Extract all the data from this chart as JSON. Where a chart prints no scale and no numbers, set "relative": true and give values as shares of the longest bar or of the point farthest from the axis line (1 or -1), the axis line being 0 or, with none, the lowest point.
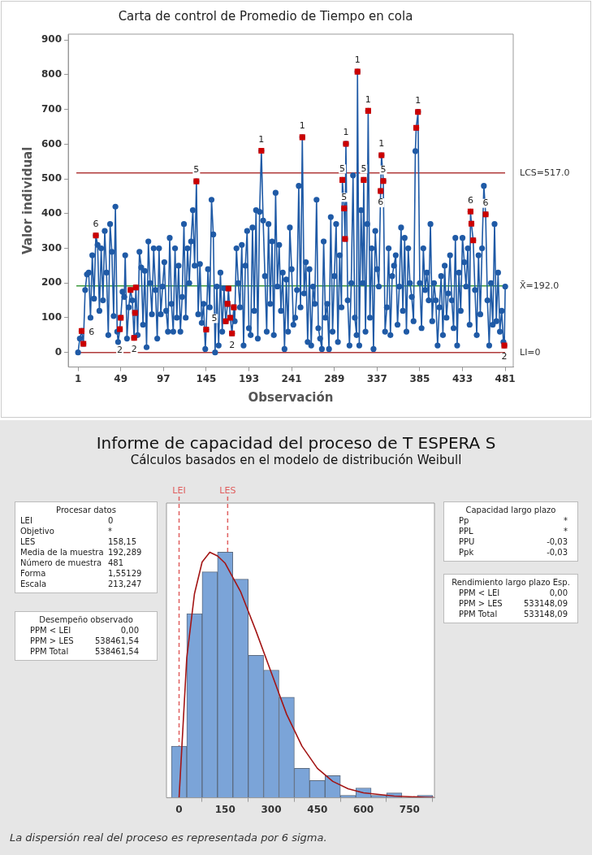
{
  "chart_data": [
    {
      "type": "line",
      "title": "Carta de control de Promedio de Tiempo en cola",
      "xlabel": "Observación",
      "ylabel": "Valor individual",
      "xlim": [
        -10,
        490
      ],
      "xticks": [
        1,
        49,
        97,
        145,
        193,
        241,
        289,
        337,
        385,
        433,
        481
      ],
      "ylim": [
        -42,
        917
      ],
      "yticks": [
        0,
        100,
        200,
        300,
        400,
        500,
        600,
        700,
        800,
        900
      ],
      "grid": false,
      "legend": false,
      "series": [
        {
          "type": "line",
          "color": "#1f5aa6",
          "marker": "circle",
          "x": [
            1,
            3,
            5,
            7,
            9,
            11,
            13,
            15,
            17,
            19,
            21,
            23,
            25,
            27,
            29,
            31,
            33,
            35,
            37,
            39,
            41,
            43,
            45,
            46,
            48,
            49,
            51,
            53,
            54,
            56,
            58,
            60,
            62,
            64,
            65,
            66,
            68,
            70,
            72,
            74,
            76,
            78,
            80,
            82,
            84,
            86,
            88,
            90,
            92,
            94,
            96,
            98,
            100,
            102,
            104,
            106,
            108,
            110,
            112,
            114,
            116,
            118,
            120,
            122,
            124,
            126,
            128,
            130,
            132,
            134,
            136,
            138,
            140,
            142,
            144,
            145,
            147,
            149,
            151,
            153,
            155,
            157,
            159,
            161,
            163,
            165,
            167,
            169,
            170,
            172,
            174,
            176,
            177,
            179,
            181,
            183,
            185,
            187,
            189,
            191,
            193,
            195,
            197,
            199,
            201,
            203,
            205,
            207,
            209,
            211,
            213,
            215,
            217,
            219,
            221,
            223,
            225,
            227,
            229,
            231,
            233,
            235,
            237,
            239,
            241,
            243,
            245,
            247,
            249,
            251,
            253,
            255,
            257,
            259,
            261,
            263,
            265,
            267,
            269,
            271,
            273,
            275,
            277,
            279,
            281,
            283,
            285,
            287,
            289,
            291,
            293,
            295,
            297,
            298,
            300,
            301,
            302,
            304,
            306,
            308,
            310,
            312,
            314,
            315,
            317,
            319,
            321,
            322,
            324,
            326,
            327,
            329,
            331,
            333,
            335,
            337,
            339,
            341,
            342,
            344,
            346,
            348,
            350,
            352,
            354,
            356,
            358,
            360,
            362,
            364,
            366,
            368,
            370,
            372,
            374,
            376,
            378,
            380,
            381,
            383,
            385,
            387,
            389,
            391,
            393,
            395,
            397,
            399,
            401,
            403,
            405,
            407,
            409,
            411,
            413,
            415,
            417,
            419,
            421,
            423,
            425,
            427,
            429,
            431,
            433,
            435,
            437,
            439,
            441,
            442,
            443,
            445,
            447,
            449,
            451,
            453,
            455,
            457,
            459,
            461,
            463,
            465,
            467,
            469,
            471,
            473,
            475,
            477,
            479,
            480,
            481
          ],
          "values": [
            0,
            40,
            62,
            25,
            180,
            225,
            230,
            100,
            280,
            155,
            337,
            310,
            120,
            300,
            150,
            350,
            230,
            50,
            370,
            290,
            105,
            420,
            60,
            30,
            67,
            100,
            175,
            160,
            280,
            40,
            130,
            180,
            150,
            42,
            114,
            187,
            50,
            290,
            245,
            80,
            235,
            15,
            320,
            200,
            110,
            300,
            180,
            40,
            300,
            110,
            190,
            260,
            120,
            60,
            330,
            140,
            60,
            300,
            100,
            250,
            60,
            160,
            370,
            100,
            300,
            200,
            320,
            410,
            250,
            493,
            110,
            255,
            85,
            140,
            10,
            66,
            240,
            130,
            440,
            340,
            0,
            190,
            20,
            230,
            60,
            185,
            90,
            140,
            184,
            100,
            55,
            130,
            90,
            300,
            200,
            130,
            310,
            20,
            250,
            350,
            70,
            50,
            360,
            120,
            410,
            40,
            405,
            581,
            380,
            220,
            60,
            370,
            140,
            320,
            50,
            460,
            190,
            310,
            120,
            230,
            10,
            210,
            60,
            360,
            240,
            80,
            100,
            180,
            480,
            130,
            620,
            170,
            260,
            30,
            240,
            20,
            190,
            140,
            440,
            70,
            40,
            10,
            320,
            100,
            140,
            10,
            390,
            60,
            220,
            370,
            30,
            280,
            130,
            497,
            415,
            327,
            601,
            150,
            20,
            200,
            510,
            100,
            50,
            809,
            20,
            410,
            200,
            497,
            60,
            370,
            696,
            100,
            300,
            10,
            350,
            240,
            190,
            465,
            568,
            494,
            60,
            130,
            300,
            50,
            220,
            250,
            280,
            80,
            190,
            360,
            120,
            330,
            60,
            300,
            200,
            160,
            90,
            580,
            647,
            693,
            200,
            70,
            300,
            180,
            230,
            150,
            370,
            90,
            200,
            150,
            20,
            130,
            220,
            50,
            250,
            100,
            170,
            280,
            150,
            70,
            330,
            20,
            230,
            120,
            330,
            260,
            190,
            300,
            80,
            406,
            371,
            323,
            180,
            50,
            280,
            110,
            300,
            480,
            398,
            150,
            20,
            200,
            80,
            370,
            90,
            230,
            60,
            120,
            30,
            20,
            190
          ]
        },
        {
          "type": "scatter",
          "color": "#cc0000",
          "marker": "square",
          "x": [
            5,
            7,
            21,
            48,
            49,
            60,
            64,
            65,
            66,
            134,
            145,
            167,
            169,
            170,
            172,
            174,
            176,
            207,
            253,
            298,
            300,
            301,
            302,
            315,
            322,
            327,
            341,
            342,
            344,
            381,
            383,
            442,
            443,
            445,
            459,
            480
          ],
          "values": [
            62,
            25,
            337,
            67,
            100,
            180,
            42,
            114,
            187,
            493,
            66,
            90,
            140,
            184,
            100,
            55,
            130,
            581,
            620,
            497,
            415,
            327,
            601,
            809,
            497,
            696,
            465,
            568,
            494,
            647,
            693,
            406,
            371,
            323,
            398,
            20
          ]
        }
      ],
      "ref_lines": [
        {
          "axis": "y",
          "value": 517,
          "label": "LCS=517.0",
          "color": "#b03a3a",
          "line_style": "solid"
        },
        {
          "axis": "y",
          "value": 192,
          "label": "X̄=192.0",
          "color": "#3c9a3c",
          "line_style": "solid"
        },
        {
          "axis": "y",
          "value": 0,
          "label": "LI=0",
          "color": "#b03a3a",
          "line_style": "solid"
        }
      ],
      "annotations": [
        {
          "text": "6",
          "x": 7,
          "y": 25
        },
        {
          "text": "6",
          "x": 21,
          "y": 337
        },
        {
          "text": "2",
          "x": 48,
          "y": 67
        },
        {
          "text": "2",
          "x": 64,
          "y": 42
        },
        {
          "text": "5",
          "x": 134,
          "y": 493
        },
        {
          "text": "5",
          "x": 145,
          "y": 66
        },
        {
          "text": "2",
          "x": 174,
          "y": 55
        },
        {
          "text": "1",
          "x": 207,
          "y": 581
        },
        {
          "text": "1",
          "x": 253,
          "y": 620
        },
        {
          "text": "5",
          "x": 298,
          "y": 497
        },
        {
          "text": "5",
          "x": 300,
          "y": 415
        },
        {
          "text": "1",
          "x": 302,
          "y": 601
        },
        {
          "text": "1",
          "x": 315,
          "y": 809
        },
        {
          "text": "5",
          "x": 322,
          "y": 497
        },
        {
          "text": "1",
          "x": 327,
          "y": 696
        },
        {
          "text": "6",
          "x": 341,
          "y": 465
        },
        {
          "text": "1",
          "x": 342,
          "y": 568
        },
        {
          "text": "5",
          "x": 344,
          "y": 494
        },
        {
          "text": "1",
          "x": 383,
          "y": 693
        },
        {
          "text": "6",
          "x": 442,
          "y": 406
        },
        {
          "text": "6",
          "x": 459,
          "y": 398
        },
        {
          "text": "2",
          "x": 480,
          "y": 20
        }
      ]
    },
    {
      "type": "histogram",
      "title": "Informe de capacidad del proceso de T ESPERA S",
      "subtitle": "Cálculos basados en el modelo de distribución Weibull",
      "relative": true,
      "xlim": [
        -41,
        831
      ],
      "xticks": [
        0,
        150,
        300,
        450,
        600,
        750
      ],
      "grid": false,
      "legend": false,
      "color": "#7ba4d8",
      "bins": [
        -25,
        25,
        75,
        125,
        175,
        225,
        275,
        325,
        375,
        425,
        475,
        525,
        575,
        625,
        675,
        725,
        775,
        825
      ],
      "values": [
        0.21,
        0.75,
        0.92,
        1,
        0.89,
        0.58,
        0.52,
        0.41,
        0.12,
        0.07,
        0.09,
        0.01,
        0.04,
        0.01,
        0.02,
        0,
        0.01
      ],
      "series": [
        {
          "type": "line",
          "color": "#a31515",
          "marker": "none",
          "x": [
            0,
            25,
            50,
            75,
            100,
            125,
            150,
            200,
            250,
            300,
            350,
            400,
            450,
            500,
            550,
            600,
            700,
            800,
            830
          ],
          "values": [
            0,
            0.57,
            0.83,
            0.96,
            1,
            0.985,
            0.955,
            0.84,
            0.68,
            0.51,
            0.34,
            0.21,
            0.12,
            0.067,
            0.037,
            0.02,
            0.007,
            0.002,
            0.001
          ]
        }
      ],
      "ref_lines": [
        {
          "axis": "x",
          "value": 0,
          "label": "LEI",
          "color": "#e06060",
          "line_style": "dashed"
        },
        {
          "axis": "x",
          "value": 158.15,
          "label": "LES",
          "color": "#e06060",
          "line_style": "dashed"
        }
      ],
      "annotations": [
        "La dispersión real del proceso es representada por 6 sigma."
      ]
    },
    {
      "type": "other",
      "title": "Procesar datos",
      "categories": [
        "LEI",
        "Objetivo",
        "LES",
        "Media de la muestra",
        "Número de muestra",
        "Forma",
        "Escala"
      ],
      "value_labels": [
        "0",
        "*",
        "158,15",
        "192,289",
        "481",
        "1,55129",
        "213,247"
      ]
    },
    {
      "type": "other",
      "title": "Desempeño observado",
      "categories": [
        "PPM < LEI",
        "PPM > LES",
        "PPM Total"
      ],
      "value_labels": [
        "0,00",
        "538461,54",
        "538461,54"
      ]
    },
    {
      "type": "other",
      "title": "Capacidad largo plazo",
      "categories": [
        "Pp",
        "PPL",
        "PPU",
        "Ppk"
      ],
      "value_labels": [
        "*",
        "*",
        "-0,03",
        "-0,03"
      ]
    },
    {
      "type": "other",
      "title": "Rendimiento largo plazo Esp.",
      "categories": [
        "PPM < LEI",
        "PPM > LES",
        "PPM Total"
      ],
      "value_labels": [
        "0,00",
        "533148,09",
        "533148,09"
      ]
    }
  ]
}
